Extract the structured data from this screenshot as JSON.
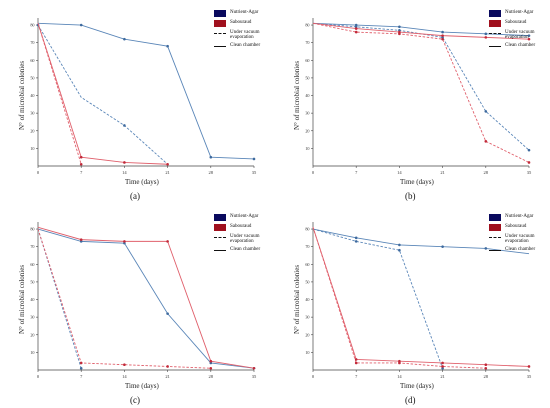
{
  "chart_data": [
    {
      "type": "line",
      "panel_label": "(a)",
      "xlabel": "Time (days)",
      "ylabel": "N° of microbial colonies",
      "x": [
        0,
        7,
        14,
        21,
        28,
        35
      ],
      "xticks": [
        "0",
        "7",
        "14",
        "21",
        "28",
        "35"
      ],
      "yticks": [
        "10",
        "20",
        "30",
        "40",
        "50",
        "60",
        "70",
        "80"
      ],
      "ylim": [
        0,
        84
      ],
      "series": [
        {
          "group": "Nutrient-Agar",
          "mode": "Under vacuum evaporation",
          "x": [
            0,
            7,
            14,
            21
          ],
          "values": [
            80,
            39,
            23,
            1
          ],
          "markers": [
            0,
            2
          ]
        },
        {
          "group": "Nutrient-Agar",
          "mode": "Clean chamber",
          "x": [
            0,
            7,
            14,
            21,
            28,
            35
          ],
          "values": [
            81,
            80,
            72,
            68,
            5,
            4
          ],
          "markers": [
            1,
            2,
            3,
            4,
            5
          ]
        },
        {
          "group": "Sabouraud",
          "mode": "Under vacuum evaporation",
          "x": [
            0,
            7
          ],
          "values": [
            81,
            1
          ],
          "markers": [
            1
          ]
        },
        {
          "group": "Sabouraud",
          "mode": "Clean chamber",
          "x": [
            0,
            7,
            14,
            21
          ],
          "values": [
            81,
            5,
            2,
            1
          ],
          "markers": [
            1,
            2,
            3
          ]
        }
      ]
    },
    {
      "type": "line",
      "panel_label": "(b)",
      "xlabel": "Time (days)",
      "ylabel": "N° of microbial colonies",
      "x": [
        0,
        7,
        14,
        21,
        28,
        35
      ],
      "xticks": [
        "0",
        "7",
        "14",
        "21",
        "28",
        "35"
      ],
      "yticks": [
        "10",
        "20",
        "30",
        "40",
        "50",
        "60",
        "70",
        "80"
      ],
      "ylim": [
        0,
        84
      ],
      "series": [
        {
          "group": "Nutrient-Agar",
          "mode": "Under vacuum evaporation",
          "x": [
            0,
            7,
            14,
            21,
            28,
            35
          ],
          "values": [
            81,
            79,
            77,
            73,
            31,
            9
          ],
          "markers": [
            1,
            2,
            3,
            4,
            5
          ]
        },
        {
          "group": "Nutrient-Agar",
          "mode": "Clean chamber",
          "x": [
            0,
            7,
            14,
            21,
            28,
            35
          ],
          "values": [
            81,
            80,
            79,
            76,
            75,
            74
          ],
          "markers": [
            1,
            2,
            3,
            4,
            5
          ]
        },
        {
          "group": "Sabouraud",
          "mode": "Under vacuum evaporation",
          "x": [
            0,
            7,
            14,
            21,
            28,
            35
          ],
          "values": [
            81,
            76,
            75,
            72,
            14,
            2
          ],
          "markers": [
            1,
            2,
            3,
            4,
            5
          ]
        },
        {
          "group": "Sabouraud",
          "mode": "Clean chamber",
          "x": [
            0,
            7,
            14,
            21,
            28,
            35
          ],
          "values": [
            81,
            78,
            76,
            74,
            73,
            72
          ],
          "markers": [
            1,
            2,
            3,
            4,
            5
          ]
        }
      ]
    },
    {
      "type": "line",
      "panel_label": "(c)",
      "xlabel": "Time (days)",
      "ylabel": "N° of microbial colonies",
      "x": [
        0,
        7,
        14,
        21,
        28,
        35
      ],
      "xticks": [
        "0",
        "7",
        "14",
        "21",
        "28",
        "35"
      ],
      "yticks": [
        "10",
        "20",
        "30",
        "40",
        "50",
        "60",
        "70",
        "80"
      ],
      "ylim": [
        0,
        84
      ],
      "series": [
        {
          "group": "Nutrient-Agar",
          "mode": "Under vacuum evaporation",
          "x": [
            0,
            7
          ],
          "values": [
            80,
            1
          ],
          "markers": [
            1
          ]
        },
        {
          "group": "Nutrient-Agar",
          "mode": "Clean chamber",
          "x": [
            0,
            7,
            14,
            21,
            28,
            35
          ],
          "values": [
            80,
            73,
            72,
            32,
            4,
            1
          ],
          "markers": [
            1,
            2,
            3,
            4,
            5
          ]
        },
        {
          "group": "Sabouraud",
          "mode": "Under vacuum evaporation",
          "x": [
            0,
            7,
            14,
            21,
            28
          ],
          "values": [
            80,
            4,
            3,
            2,
            1
          ],
          "markers": [
            1,
            2,
            3,
            4
          ]
        },
        {
          "group": "Sabouraud",
          "mode": "Clean chamber",
          "x": [
            0,
            7,
            14,
            21,
            28,
            35
          ],
          "values": [
            81,
            74,
            73,
            73,
            5,
            1
          ],
          "markers": [
            1,
            2,
            3,
            4,
            5
          ]
        }
      ]
    },
    {
      "type": "line",
      "panel_label": "(d)",
      "xlabel": "Time (days)",
      "ylabel": "N° of microbial colonies",
      "x": [
        0,
        7,
        14,
        21,
        28,
        35
      ],
      "xticks": [
        "0",
        "7",
        "14",
        "21",
        "28",
        "35"
      ],
      "yticks": [
        "10",
        "20",
        "30",
        "40",
        "50",
        "60",
        "70",
        "80"
      ],
      "ylim": [
        0,
        84
      ],
      "series": [
        {
          "group": "Nutrient-Agar",
          "mode": "Under vacuum evaporation",
          "x": [
            0,
            7,
            14,
            21
          ],
          "values": [
            80,
            73,
            68,
            1
          ],
          "markers": [
            1,
            2,
            3
          ]
        },
        {
          "group": "Nutrient-Agar",
          "mode": "Clean chamber",
          "x": [
            0,
            7,
            14,
            21,
            28,
            35
          ],
          "values": [
            80,
            75,
            71,
            70,
            69,
            66
          ],
          "markers": [
            1,
            2,
            3,
            4
          ]
        },
        {
          "group": "Sabouraud",
          "mode": "Under vacuum evaporation",
          "x": [
            0,
            7,
            14,
            21,
            28
          ],
          "values": [
            81,
            4,
            4,
            2,
            1
          ],
          "markers": [
            1,
            2,
            3,
            4
          ]
        },
        {
          "group": "Sabouraud",
          "mode": "Clean chamber",
          "x": [
            0,
            7,
            14,
            21,
            28,
            35
          ],
          "values": [
            81,
            6,
            5,
            4,
            3,
            2
          ],
          "markers": [
            1,
            2,
            3,
            4,
            5
          ]
        }
      ]
    }
  ],
  "legend": {
    "groups": [
      {
        "label": "Nutrient-Agar",
        "color": "#0a0a5e"
      },
      {
        "label": "Sabouraud",
        "color": "#a0101e"
      }
    ],
    "modes": [
      {
        "label": "Under vacuum evaporation",
        "style": "dashed"
      },
      {
        "label": "Clean chamber",
        "style": "solid"
      }
    ]
  },
  "colors": {
    "blue_line": "#5a86b8",
    "red_line": "#e0606c",
    "blue_marker": "#3e6a9e",
    "red_marker": "#c22a3a"
  }
}
